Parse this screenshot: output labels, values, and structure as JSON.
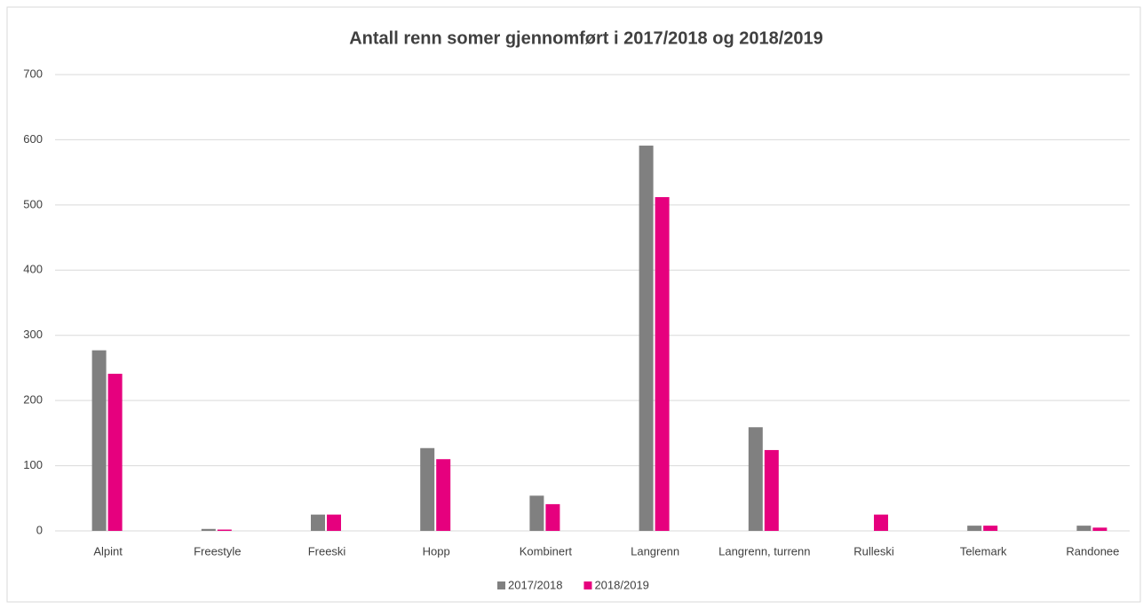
{
  "chart_data": {
    "type": "bar",
    "title": "Antall renn somer gjennomført i 2017/2018 og 2018/2019",
    "categories": [
      "Alpint",
      "Freestyle",
      "Freeski",
      "Hopp",
      "Kombinert",
      "Langrenn",
      "Langrenn, turrenn",
      "Rulleski",
      "Telemark",
      "Randonee"
    ],
    "series": [
      {
        "name": "2017/2018",
        "color": "#808080",
        "values": [
          277,
          3,
          25,
          127,
          54,
          591,
          159,
          0,
          8,
          8
        ]
      },
      {
        "name": "2018/2019",
        "color": "#e6007e",
        "values": [
          241,
          2,
          25,
          110,
          41,
          512,
          124,
          25,
          8,
          5
        ]
      }
    ],
    "ylim": [
      0,
      700
    ],
    "yticks": [
      0,
      100,
      200,
      300,
      400,
      500,
      600,
      700
    ],
    "grid": true,
    "legend": "bottom"
  }
}
